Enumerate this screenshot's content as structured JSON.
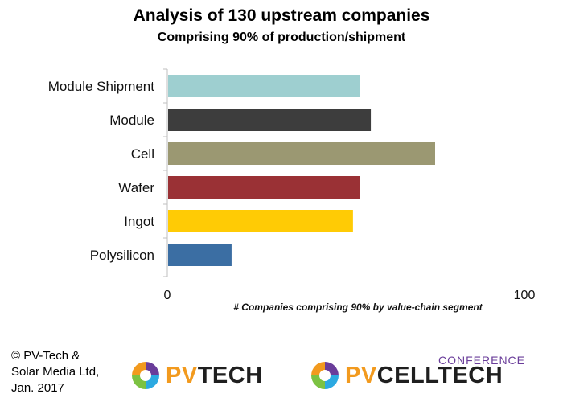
{
  "header": {
    "title": "Analysis of 130 upstream companies",
    "subtitle": "Comprising 90% of production/shipment"
  },
  "chart_data": {
    "type": "bar",
    "orientation": "horizontal",
    "title": "Analysis of 130 upstream companies",
    "subtitle": "Comprising 90% of production/shipment",
    "categories": [
      "Module Shipment",
      "Module",
      "Cell",
      "Wafer",
      "Ingot",
      "Polysilicon"
    ],
    "values": [
      54,
      57,
      75,
      54,
      52,
      18
    ],
    "colors": [
      "#9ecfd0",
      "#3d3d3d",
      "#9b9872",
      "#9a3135",
      "#ffcb05",
      "#3b6ea3"
    ],
    "xlabel": "# Companies comprising 90% by value-chain segment",
    "ylabel": "",
    "xlim": [
      0,
      100
    ],
    "x_ticks": [
      "0",
      "100"
    ],
    "grid": false,
    "legend": "none"
  },
  "footer": {
    "copyright_lines": [
      "© PV-Tech &",
      "Solar Media Ltd,",
      "Jan. 2017"
    ],
    "logo_pvtech": {
      "part1": "PV",
      "part2": "TECH"
    },
    "logo_cell": {
      "part1": "PV",
      "part2": "CELLTECH",
      "conference": "CONFERENCE"
    }
  }
}
